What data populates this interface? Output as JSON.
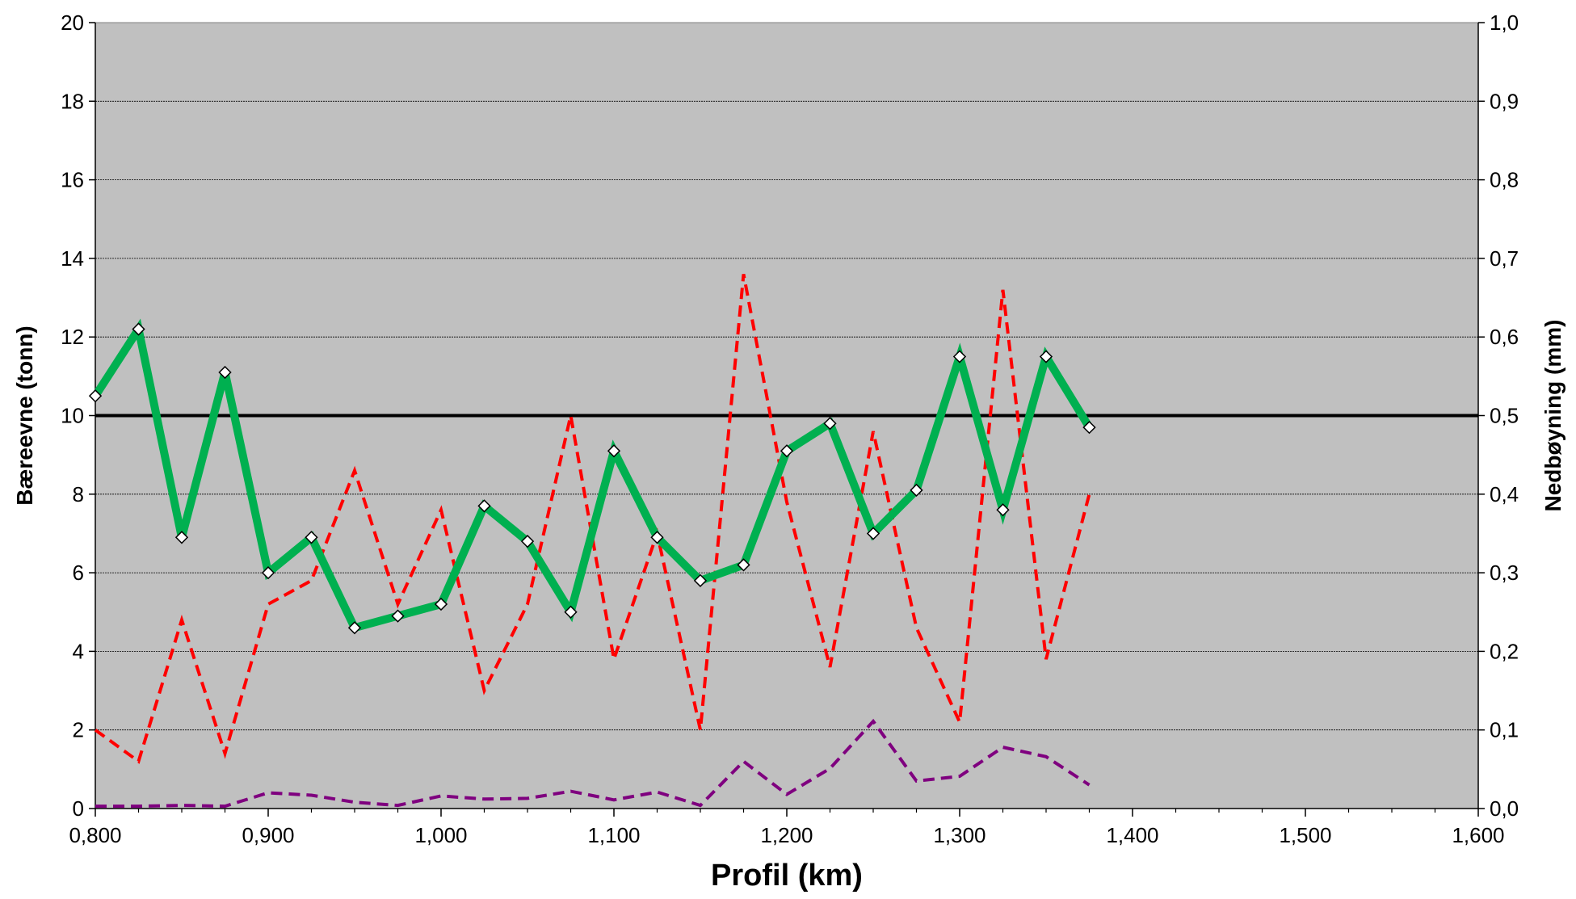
{
  "chart_data": {
    "type": "line",
    "xlabel": "Profil (km)",
    "ylabel": "Bæreevne (tonn)",
    "y2label": "Nedbøyning (mm)",
    "xlim": [
      0.8,
      1.6
    ],
    "ylim": [
      0,
      20
    ],
    "y2lim": [
      0,
      1.0
    ],
    "x_ticks": [
      "0,800",
      "0,900",
      "1,000",
      "1,100",
      "1,200",
      "1,300",
      "1,400",
      "1,500",
      "1,600"
    ],
    "y_ticks": [
      "0",
      "2",
      "4",
      "6",
      "8",
      "10",
      "12",
      "14",
      "16",
      "18",
      "20"
    ],
    "y2_ticks": [
      "0,0",
      "0,1",
      "0,2",
      "0,3",
      "0,4",
      "0,5",
      "0,6",
      "0,7",
      "0,8",
      "0,9",
      "1,0"
    ],
    "grid": true,
    "plot_background": "#c0c0c0",
    "x": [
      0.8,
      0.825,
      0.85,
      0.875,
      0.9,
      0.925,
      0.95,
      0.975,
      1.0,
      1.025,
      1.05,
      1.075,
      1.1,
      1.125,
      1.15,
      1.175,
      1.2,
      1.225,
      1.25,
      1.275,
      1.3,
      1.325,
      1.35,
      1.375
    ],
    "reference_line": {
      "axis": "left",
      "value": 10,
      "color": "#000000"
    },
    "series": [
      {
        "axis": "left",
        "color": "#00b050",
        "style": "solid",
        "markers": true,
        "values": [
          10.5,
          12.2,
          6.9,
          11.1,
          6.0,
          6.9,
          4.6,
          4.9,
          5.2,
          7.7,
          6.8,
          5.0,
          9.1,
          6.9,
          5.8,
          6.2,
          9.1,
          9.8,
          7.0,
          8.1,
          11.5,
          7.6,
          11.5,
          9.7
        ]
      },
      {
        "axis": "right",
        "color": "#ff0000",
        "style": "dashed",
        "markers": false,
        "values": [
          0.1,
          0.06,
          0.24,
          0.07,
          0.26,
          0.29,
          0.43,
          0.26,
          0.38,
          0.15,
          0.26,
          0.5,
          0.19,
          0.35,
          0.1,
          0.68,
          0.39,
          0.18,
          0.48,
          0.23,
          0.11,
          0.66,
          0.19,
          0.4
        ]
      },
      {
        "axis": "right",
        "color": "#7f007f",
        "style": "dashed",
        "markers": false,
        "values": [
          0.003,
          0.003,
          0.004,
          0.003,
          0.02,
          0.017,
          0.008,
          0.004,
          0.016,
          0.012,
          0.013,
          0.022,
          0.011,
          0.021,
          0.004,
          0.06,
          0.018,
          0.051,
          0.111,
          0.035,
          0.041,
          0.078,
          0.066,
          0.03
        ]
      }
    ]
  }
}
